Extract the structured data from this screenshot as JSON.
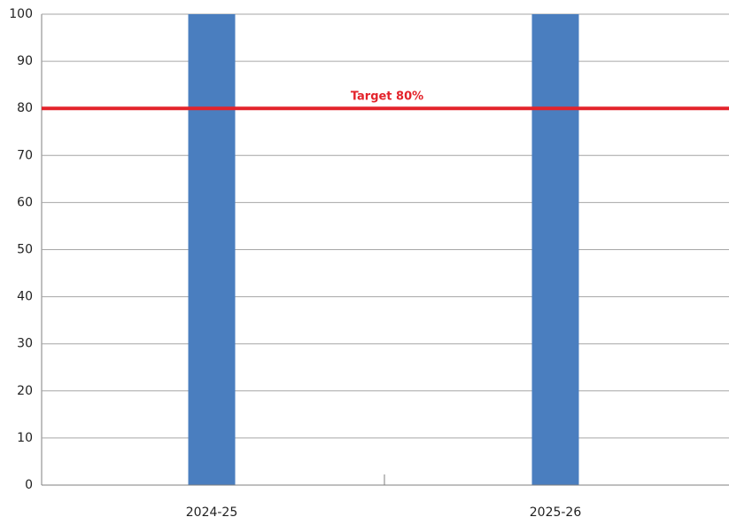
{
  "chart_data": {
    "type": "bar",
    "categories": [
      "2024-25",
      "2025-26"
    ],
    "values": [
      100,
      100
    ],
    "color": "#4a7ebf",
    "ylim": [
      0,
      100
    ],
    "yticks": [
      0,
      10,
      20,
      30,
      40,
      50,
      60,
      70,
      80,
      90,
      100
    ],
    "grid": true,
    "target": {
      "value": 80,
      "label": "Target 80%",
      "color": "#e3232b"
    }
  }
}
